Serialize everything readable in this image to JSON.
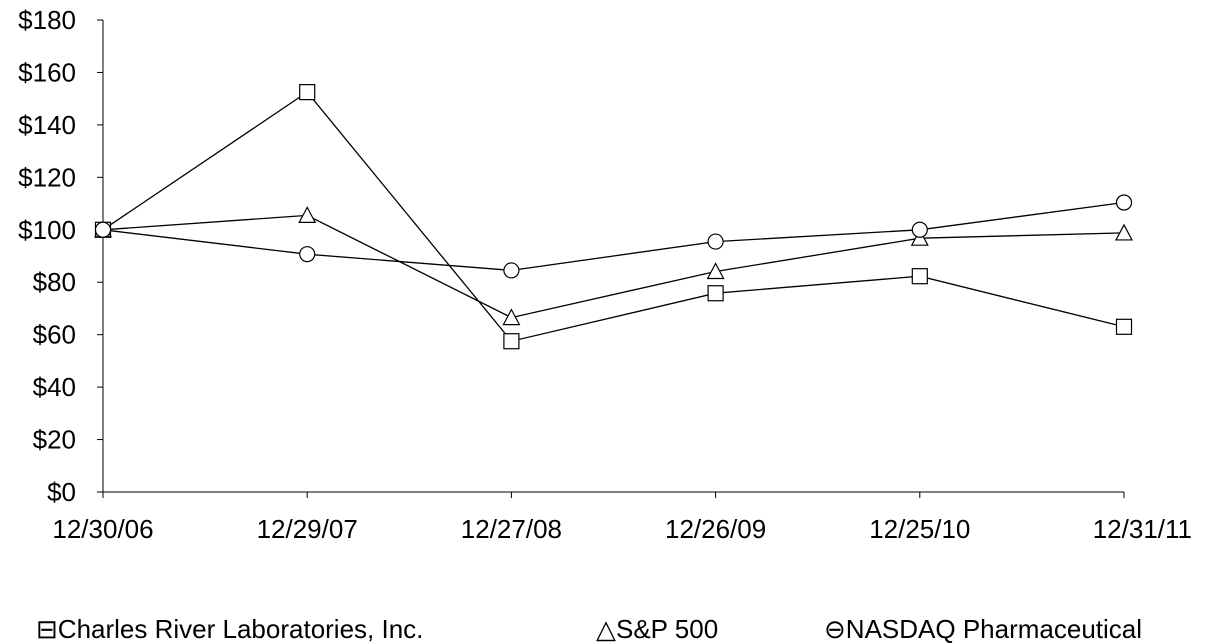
{
  "chart_data": {
    "type": "line",
    "title": "",
    "xlabel": "",
    "ylabel": "",
    "categories": [
      "12/30/06",
      "12/29/07",
      "12/27/08",
      "12/26/09",
      "12/25/10",
      "12/31/11"
    ],
    "ylim": [
      0,
      180
    ],
    "yticks": [
      "$0",
      "$20",
      "$40",
      "$60",
      "$80",
      "$100",
      "$120",
      "$140",
      "$160",
      "$180"
    ],
    "grid": false,
    "legend_position": "bottom",
    "series": [
      {
        "name": "Charles River Laboratories, Inc.",
        "marker": "square",
        "values": [
          100,
          152.5,
          57.5,
          75.8,
          82.3,
          63
        ]
      },
      {
        "name": "S&P 500",
        "marker": "triangle",
        "values": [
          100,
          105.5,
          66.5,
          84.1,
          96.8,
          98.8
        ]
      },
      {
        "name": "NASDAQ Pharmaceutical",
        "marker": "circle",
        "values": [
          100,
          90.7,
          84.5,
          95.5,
          100,
          110.4
        ]
      }
    ]
  },
  "legend": {
    "items": [
      {
        "symbol": "⊟",
        "label": "Charles River Laboratories, Inc."
      },
      {
        "symbol": "△",
        "label": "S&P 500"
      },
      {
        "symbol": "⊖",
        "label": "NASDAQ Pharmaceutical"
      }
    ]
  }
}
